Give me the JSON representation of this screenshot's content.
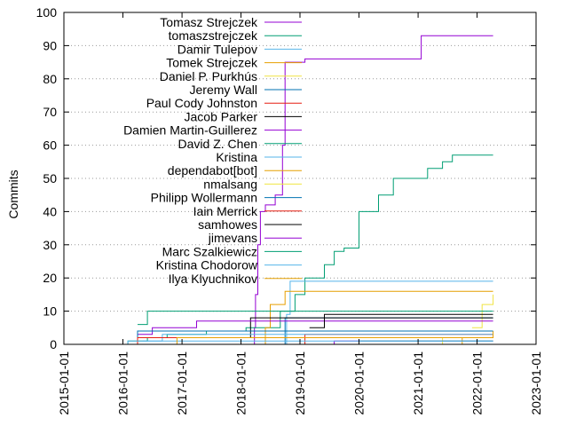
{
  "chart_data": {
    "type": "line",
    "title": "",
    "xlabel": "",
    "ylabel": "Commits",
    "xlim": [
      "2015-01-01",
      "2023-01-01"
    ],
    "ylim": [
      0,
      100
    ],
    "x_ticks": [
      "2015-01-01",
      "2016-01-01",
      "2017-01-01",
      "2018-01-01",
      "2019-01-01",
      "2020-01-01",
      "2021-01-01",
      "2022-01-01",
      "2023-01-01"
    ],
    "y_ticks": [
      0,
      10,
      20,
      30,
      40,
      50,
      60,
      70,
      80,
      90,
      100
    ],
    "grid": "horizontal dotted",
    "legend_position": "top-left",
    "series": [
      {
        "name": "Tomasz Strejczek",
        "color": "#9400d3",
        "x": [
          "2018-03-20",
          "2018-03-25",
          "2018-04-01",
          "2018-04-15",
          "2018-05-01",
          "2018-06-01",
          "2018-08-01",
          "2018-09-15",
          "2018-10-01",
          "2019-02-01",
          "2021-01-15",
          "2021-01-20",
          "2022-04-10"
        ],
        "y": [
          0,
          5,
          15,
          30,
          40,
          42,
          45,
          60,
          85,
          86,
          86,
          93,
          93
        ]
      },
      {
        "name": "tomaszstrejczek",
        "color": "#009e73",
        "x": [
          "2015-10-01",
          "2016-02-01",
          "2016-06-01",
          "2016-10-01",
          "2017-06-01",
          "2018-02-01",
          "2018-09-01",
          "2018-12-01",
          "2019-02-01",
          "2019-06-01",
          "2019-08-01",
          "2019-10-01",
          "2020-01-01",
          "2020-05-01",
          "2020-08-01",
          "2021-03-01",
          "2021-06-01",
          "2021-08-01",
          "2022-04-10"
        ],
        "y": [
          0,
          1,
          2,
          3,
          4,
          5,
          10,
          15,
          20,
          24,
          28,
          29,
          40,
          45,
          50,
          53,
          55,
          57,
          57
        ]
      },
      {
        "name": "Damir Tulepov",
        "color": "#56b4e9",
        "x": [
          "2018-09-20",
          "2018-10-10",
          "2018-11-01",
          "2022-04-10"
        ],
        "y": [
          0,
          9,
          19,
          19
        ]
      },
      {
        "name": "Tomek Strejczek",
        "color": "#e69f00",
        "x": [
          "2018-05-01",
          "2018-06-01",
          "2018-07-01",
          "2018-10-01",
          "2022-04-10"
        ],
        "y": [
          0,
          5,
          12,
          16,
          16
        ]
      },
      {
        "name": "Daniel P. Purkhús",
        "color": "#f0e442",
        "x": [
          "2021-12-01",
          "2022-02-01",
          "2022-04-10"
        ],
        "y": [
          5,
          12,
          15
        ]
      },
      {
        "name": "Jeremy Wall",
        "color": "#0072b2",
        "x": [
          "2018-05-01",
          "2018-10-01",
          "2022-04-10"
        ],
        "y": [
          0,
          8,
          8
        ]
      },
      {
        "name": "Paul Cody Johnston",
        "color": "#e51e10",
        "x": [
          "2018-05-01",
          "2019-02-01",
          "2022-04-10"
        ],
        "y": [
          0,
          3,
          3
        ]
      },
      {
        "name": "Jacob Parker",
        "color": "#000000",
        "x": [
          "2018-02-01",
          "2018-03-01",
          "2022-04-10"
        ],
        "y": [
          2,
          8,
          8
        ]
      },
      {
        "name": "Damien Martin-Guillerez",
        "color": "#9400d3",
        "x": [
          "2016-04-01",
          "2016-07-01",
          "2017-04-01",
          "2022-04-10"
        ],
        "y": [
          3,
          5,
          7,
          7
        ]
      },
      {
        "name": "David Z. Chen",
        "color": "#009e73",
        "x": [
          "2016-04-01",
          "2016-06-01",
          "2022-04-10"
        ],
        "y": [
          6,
          10,
          10
        ]
      },
      {
        "name": "Kristina",
        "color": "#56b4e9",
        "x": [
          "2016-05-01",
          "2016-09-01",
          "2022-04-10"
        ],
        "y": [
          1,
          3,
          3
        ]
      },
      {
        "name": "dependabot[bot]",
        "color": "#e69f00",
        "x": [
          "2021-05-01",
          "2021-10-01",
          "2022-04-10"
        ],
        "y": [
          0,
          2,
          4
        ]
      },
      {
        "name": "nmalsang",
        "color": "#f0e442",
        "x": [
          "2021-03-01",
          "2021-06-01",
          "2022-04-10"
        ],
        "y": [
          0,
          2,
          2
        ]
      },
      {
        "name": "Philipp Wollermann",
        "color": "#0072b2",
        "x": [
          "2016-01-01",
          "2016-04-01",
          "2022-04-10"
        ],
        "y": [
          0,
          4,
          4
        ]
      },
      {
        "name": "Iain Merrick",
        "color": "#e51e10",
        "x": [
          "2016-02-01",
          "2016-04-01",
          "2022-04-10"
        ],
        "y": [
          0,
          2,
          2
        ]
      },
      {
        "name": "samhowes",
        "color": "#000000",
        "x": [
          "2019-03-01",
          "2019-06-01",
          "2022-04-10"
        ],
        "y": [
          5,
          9,
          9
        ]
      },
      {
        "name": "jimevans",
        "color": "#9400d3",
        "x": [
          "2019-06-01",
          "2019-08-01",
          "2022-04-10"
        ],
        "y": [
          0,
          1,
          1
        ]
      },
      {
        "name": "Marc Szalkiewicz",
        "color": "#009e73",
        "x": [
          "2019-10-01",
          "2020-01-01",
          "2022-04-10"
        ],
        "y": [
          0,
          1,
          1
        ]
      },
      {
        "name": "Kristina Chodorow",
        "color": "#56b4e9",
        "x": [
          "2015-11-01",
          "2016-02-01",
          "2022-04-10"
        ],
        "y": [
          0,
          1,
          1
        ]
      },
      {
        "name": "Ilya Klyuchnikov",
        "color": "#e69f00",
        "x": [
          "2016-08-01",
          "2016-12-01",
          "2022-04-10"
        ],
        "y": [
          0,
          2,
          2
        ]
      }
    ]
  }
}
